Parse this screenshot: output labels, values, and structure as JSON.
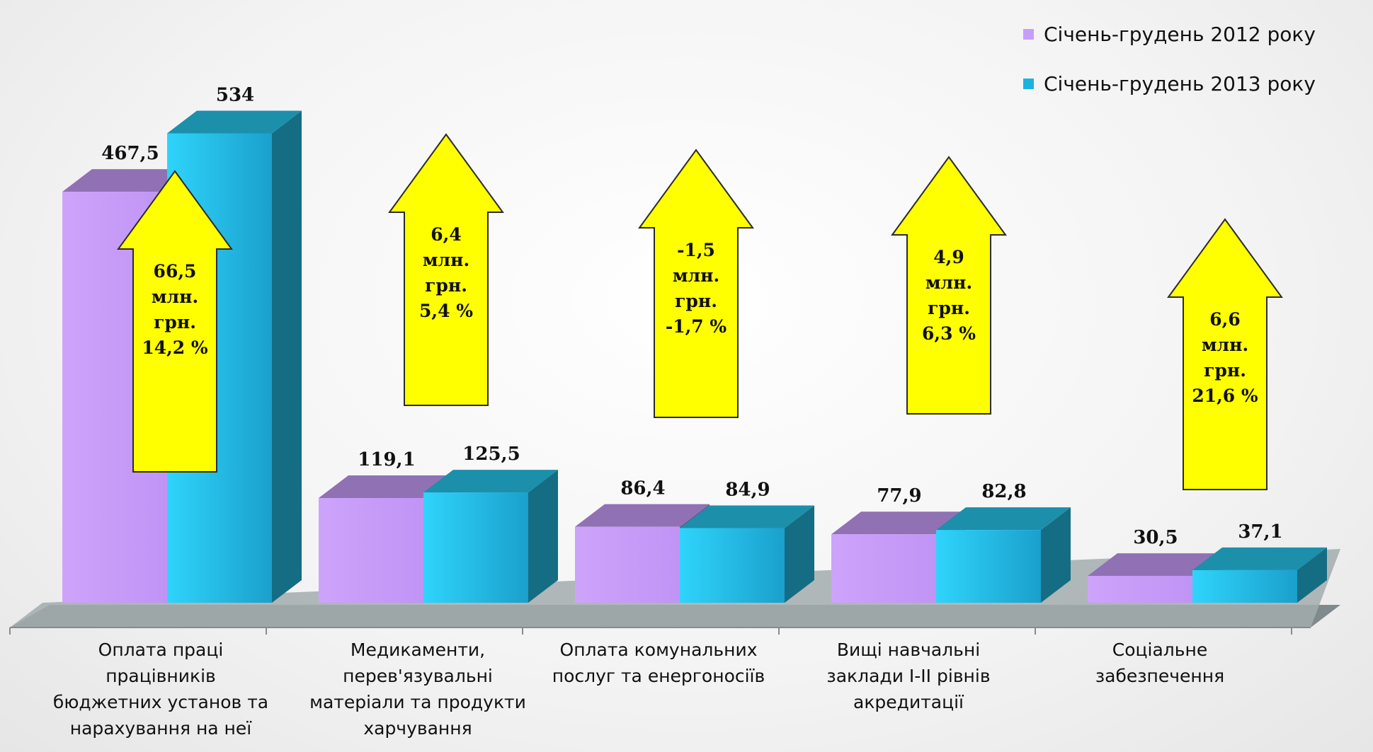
{
  "chart_data": {
    "type": "bar",
    "categories": [
      "Оплата праці працівників бюджетних установ та нарахування на неї",
      "Медикаменти, перев'язувальні матеріали та продукти харчування",
      "Оплата комунальних послуг та енергоносіїв",
      "Вищі навчальні заклади I-II рівнів акредитації",
      "Соціальне забезпечення"
    ],
    "series": [
      {
        "name": "Січень-грудень 2012 року",
        "values": [
          467.5,
          119.1,
          86.4,
          77.9,
          30.5
        ],
        "labels": [
          "467,5",
          "119,1",
          "86,4",
          "77,9",
          "30,5"
        ],
        "color": "#c89dfa"
      },
      {
        "name": "Січень-грудень 2013 року",
        "values": [
          534,
          125.5,
          84.9,
          82.8,
          37.1
        ],
        "labels": [
          "534",
          "125,5",
          "84,9",
          "82,8",
          "37,1"
        ],
        "color": "#27c6ee"
      }
    ],
    "annotations": [
      {
        "lines": [
          "66,5",
          "млн.",
          "грн.",
          "14,2 %"
        ]
      },
      {
        "lines": [
          "6,4",
          "млн.",
          "грн.",
          "5,4 %"
        ]
      },
      {
        "lines": [
          "-1,5",
          "млн.",
          "грн.",
          "-1,7 %"
        ]
      },
      {
        "lines": [
          "4,9",
          "млн.",
          "грн.",
          "6,3 %"
        ]
      },
      {
        "lines": [
          "6,6",
          "млн.",
          "грн.",
          "21,6 %"
        ]
      }
    ],
    "ylim": [
      0,
      560
    ],
    "grid": false,
    "legend_position": "top-right"
  },
  "colors": {
    "series_2012": "#c89dfa",
    "series_2013": "#27c6ee",
    "arrow_fill": "#ffff00",
    "floor": "#a3abad"
  },
  "legend": {
    "item_2012": "Січень-грудень 2012 року",
    "item_2013": "Січень-грудень 2013 року"
  },
  "category_labels": [
    [
      "Оплата праці",
      "працівників",
      "бюджетних установ та",
      "нарахування на неї"
    ],
    [
      "Медикаменти,",
      "перев'язувальні",
      "матеріали та продукти",
      "харчування"
    ],
    [
      "Оплата комунальних",
      "послуг та енергоносіїв"
    ],
    [
      "Вищі навчальні",
      "заклади I-II рівнів",
      "акредитації"
    ],
    [
      "Соціальне",
      "забезпечення"
    ]
  ]
}
